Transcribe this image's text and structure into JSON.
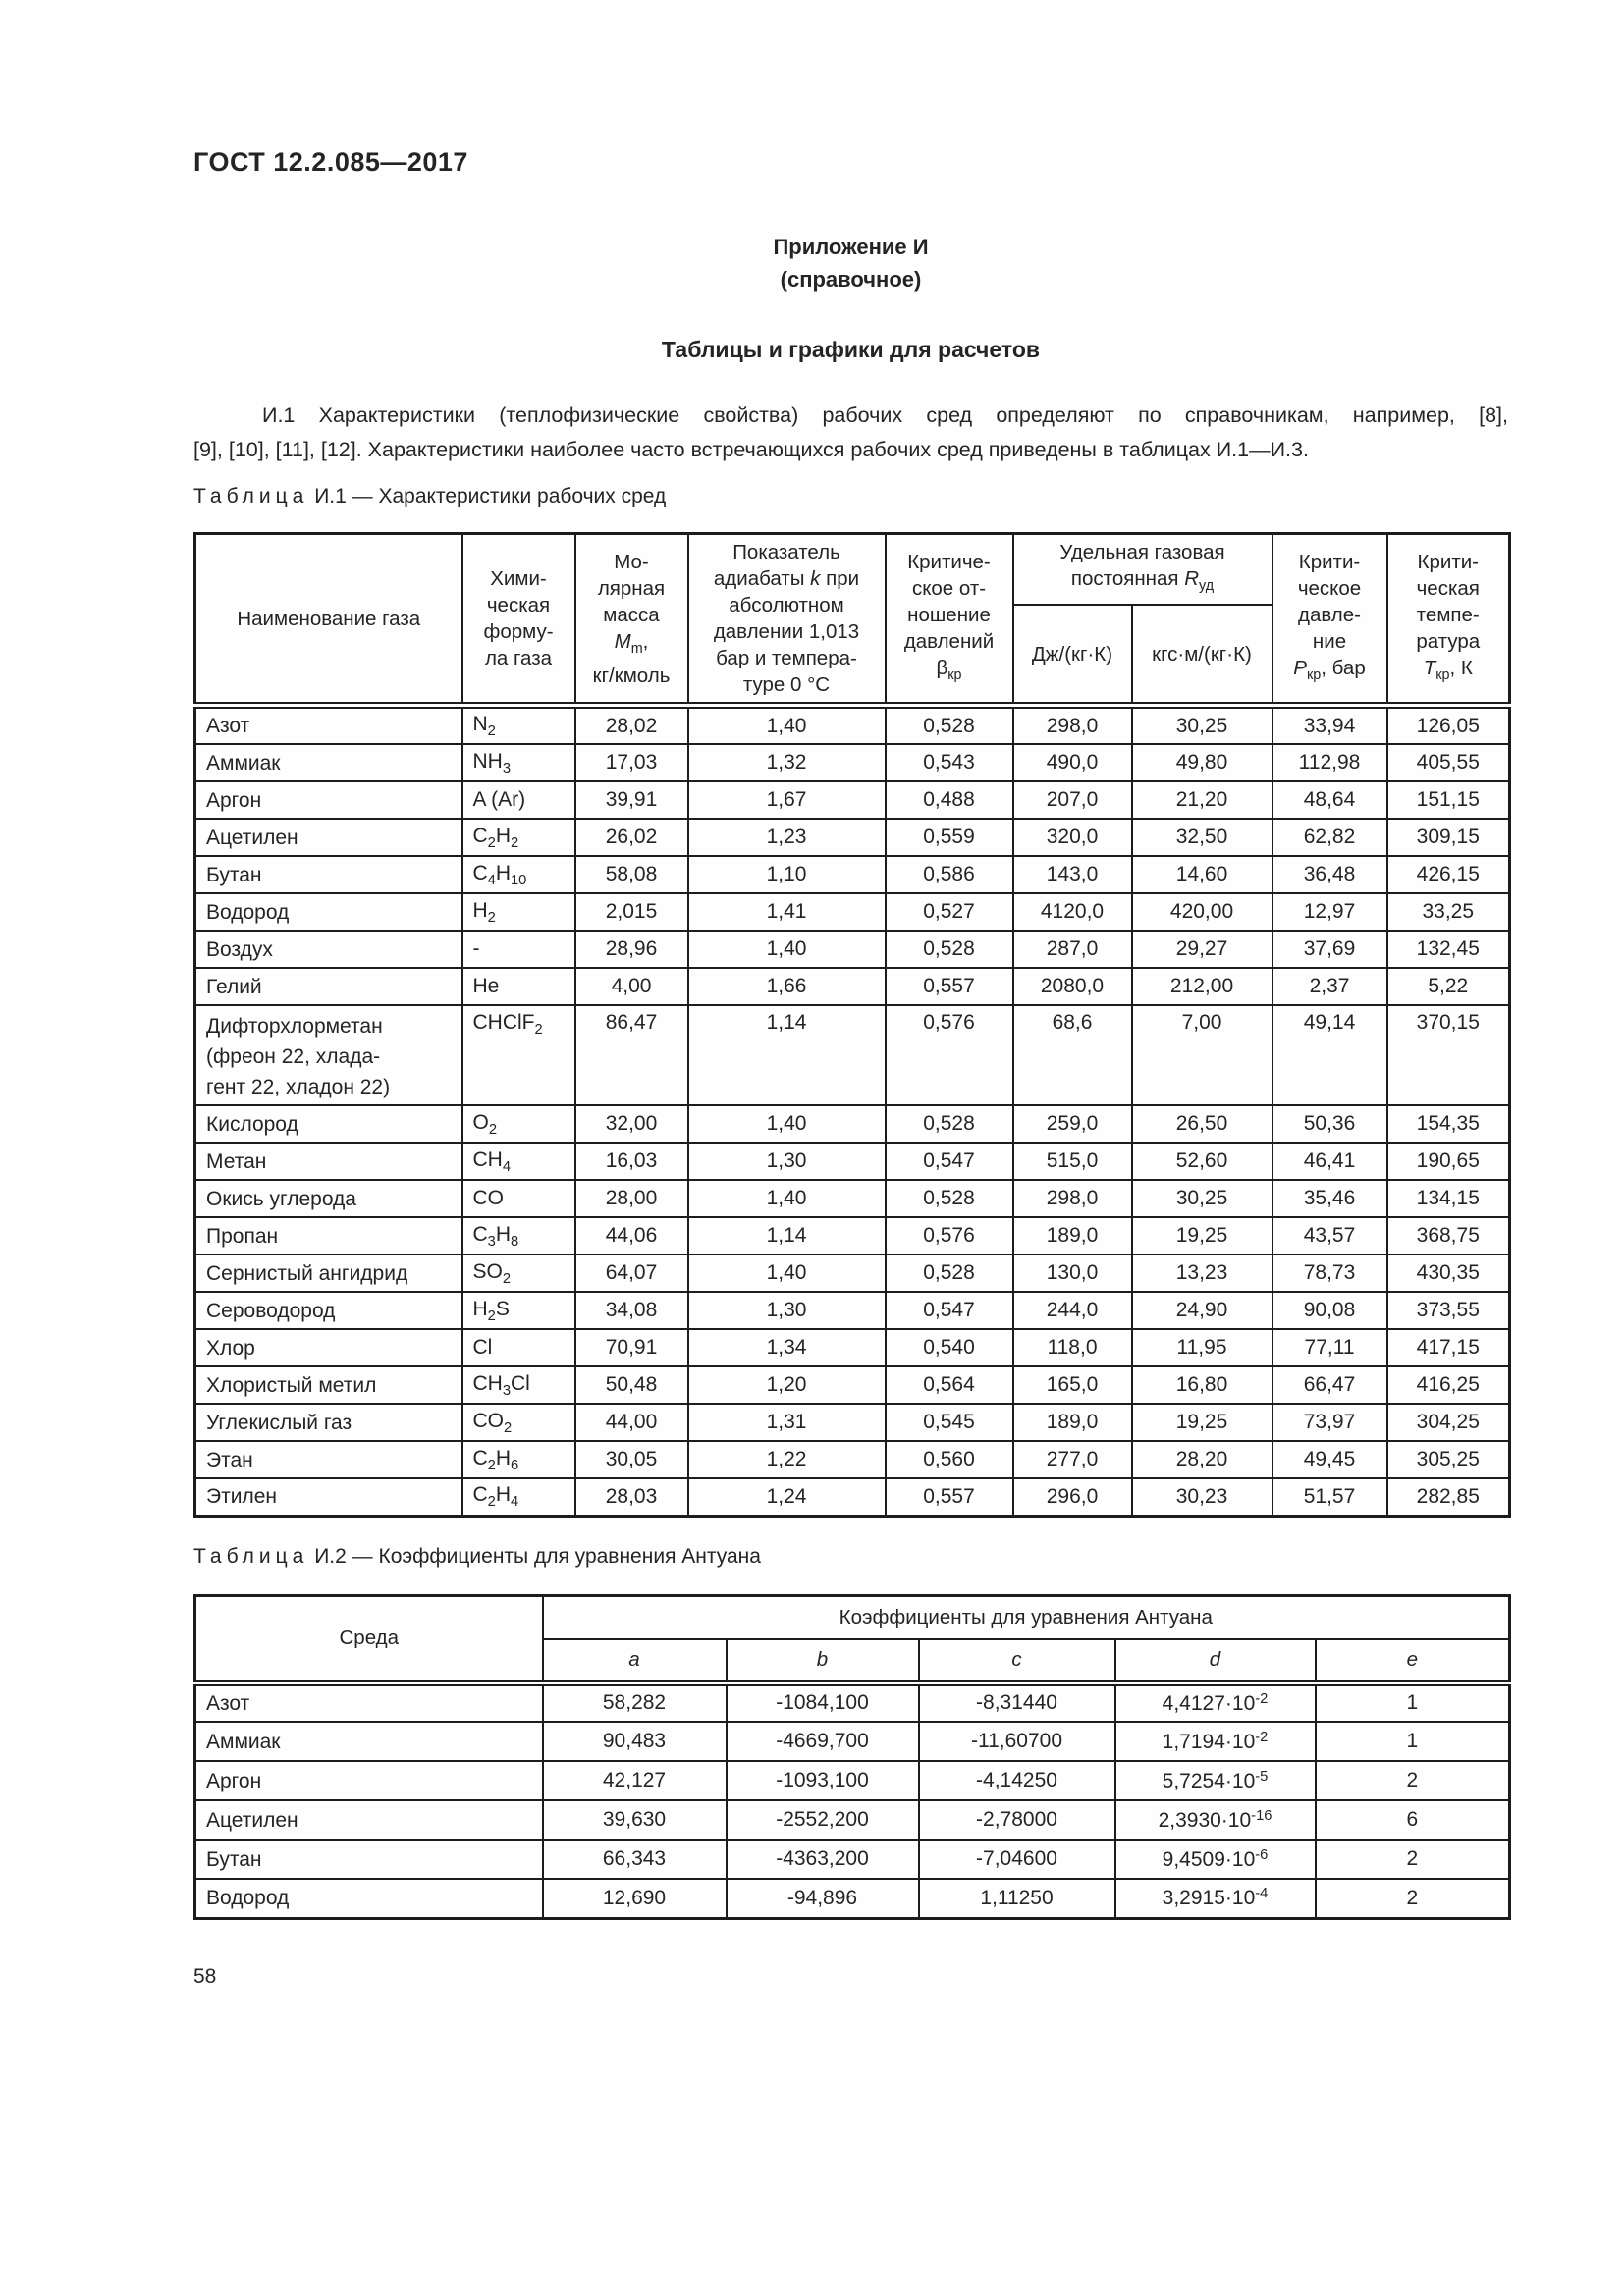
{
  "page": {
    "doc_code": "ГОСТ 12.2.085—2017",
    "appendix_title": "Приложение И",
    "appendix_note": "(справочное)",
    "section_title": "Таблицы и графики для расчетов",
    "paragraph_line1": "И.1 Характеристики (теплофизические свойства) рабочих сред определяют по справочникам, например, [8],",
    "paragraph_line2": "[9], [10], [11], [12]. Характеристики наиболее часто встречающихся рабочих сред приведены в таблицах И.1—И.3.",
    "page_number": "58"
  },
  "table1": {
    "caption_word": "Таблица",
    "caption_num": "И.1",
    "caption_rest": "— Характеристики рабочих сред",
    "headers": {
      "name": "Наименование газа",
      "formula": "Хими-\nческая\nформу-\nла газа",
      "molar_mass": "Мо-\nлярная\nмасса\n*M*_{m},\nкг/кмоль",
      "adiabatic": "Показатель\nадиабаты *k* при\nабсолютном\nдавлении  1,013\nбар и темпера-\nтуре 0 °С",
      "critical_ratio": "Критиче-\nское от-\nношение\nдавлений\nβ_{кр}",
      "gas_constant_group": "Удельная газовая\nпостоянная *R*_{уд}",
      "gas_constant_j": "Дж/(кг·К)",
      "gas_constant_kgs": "кгс·м/(кг·К)",
      "critical_pressure": "Крити-\nческое\nдавле-\nние\n*P*_{кр}, бар",
      "critical_temperature": "Крити-\nческая\nтемпе-\nратура\n*T*_{кр},  К"
    },
    "rows": [
      {
        "name": "Азот",
        "formula": "N_{2}",
        "m": "28,02",
        "k": "1,40",
        "beta": "0,528",
        "r_j": "298,0",
        "r_kgs": "30,25",
        "p": "33,94",
        "t": "126,05"
      },
      {
        "name": "Аммиак",
        "formula": "NH_{3}",
        "m": "17,03",
        "k": "1,32",
        "beta": "0,543",
        "r_j": "490,0",
        "r_kgs": "49,80",
        "p": "112,98",
        "t": "405,55"
      },
      {
        "name": "Аргон",
        "formula": "A (Ar)",
        "m": "39,91",
        "k": "1,67",
        "beta": "0,488",
        "r_j": "207,0",
        "r_kgs": "21,20",
        "p": "48,64",
        "t": "151,15"
      },
      {
        "name": "Ацетилен",
        "formula": "C_{2}H_{2}",
        "m": "26,02",
        "k": "1,23",
        "beta": "0,559",
        "r_j": "320,0",
        "r_kgs": "32,50",
        "p": "62,82",
        "t": "309,15"
      },
      {
        "name": "Бутан",
        "formula": "C_{4}H_{10}",
        "m": "58,08",
        "k": "1,10",
        "beta": "0,586",
        "r_j": "143,0",
        "r_kgs": "14,60",
        "p": "36,48",
        "t": "426,15"
      },
      {
        "name": "Водород",
        "formula": "H_{2}",
        "m": "2,015",
        "k": "1,41",
        "beta": "0,527",
        "r_j": "4120,0",
        "r_kgs": "420,00",
        "p": "12,97",
        "t": "33,25"
      },
      {
        "name": "Воздух",
        "formula": "-",
        "m": "28,96",
        "k": "1,40",
        "beta": "0,528",
        "r_j": "287,0",
        "r_kgs": "29,27",
        "p": "37,69",
        "t": "132,45"
      },
      {
        "name": "Гелий",
        "formula": "He",
        "m": "4,00",
        "k": "1,66",
        "beta": "0,557",
        "r_j": "2080,0",
        "r_kgs": "212,00",
        "p": "2,37",
        "t": "5,22"
      },
      {
        "name": "Дифторхлорметан\n(фреон  22,  хлада-\nгент 22, хладон 22)",
        "formula": "CHClF_{2}",
        "m": "86,47",
        "k": "1,14",
        "beta": "0,576",
        "r_j": "68,6",
        "r_kgs": "7,00",
        "p": "49,14",
        "t": "370,15"
      },
      {
        "name": "Кислород",
        "formula": "O_{2}",
        "m": "32,00",
        "k": "1,40",
        "beta": "0,528",
        "r_j": "259,0",
        "r_kgs": "26,50",
        "p": "50,36",
        "t": "154,35"
      },
      {
        "name": "Метан",
        "formula": "CH_{4}",
        "m": "16,03",
        "k": "1,30",
        "beta": "0,547",
        "r_j": "515,0",
        "r_kgs": "52,60",
        "p": "46,41",
        "t": "190,65"
      },
      {
        "name": "Окись углерода",
        "formula": "CO",
        "m": "28,00",
        "k": "1,40",
        "beta": "0,528",
        "r_j": "298,0",
        "r_kgs": "30,25",
        "p": "35,46",
        "t": "134,15"
      },
      {
        "name": "Пропан",
        "formula": "C_{3}H_{8}",
        "m": "44,06",
        "k": "1,14",
        "beta": "0,576",
        "r_j": "189,0",
        "r_kgs": "19,25",
        "p": "43,57",
        "t": "368,75"
      },
      {
        "name": "Сернистый ангидрид",
        "formula": "SO_{2}",
        "m": "64,07",
        "k": "1,40",
        "beta": "0,528",
        "r_j": "130,0",
        "r_kgs": "13,23",
        "p": "78,73",
        "t": "430,35"
      },
      {
        "name": "Сероводород",
        "formula": "H_{2}S",
        "m": "34,08",
        "k": "1,30",
        "beta": "0,547",
        "r_j": "244,0",
        "r_kgs": "24,90",
        "p": "90,08",
        "t": "373,55"
      },
      {
        "name": "Хлор",
        "formula": "Cl",
        "m": "70,91",
        "k": "1,34",
        "beta": "0,540",
        "r_j": "118,0",
        "r_kgs": "11,95",
        "p": "77,11",
        "t": "417,15"
      },
      {
        "name": "Хлористый метил",
        "formula": "CH_{3}Cl",
        "m": "50,48",
        "k": "1,20",
        "beta": "0,564",
        "r_j": "165,0",
        "r_kgs": "16,80",
        "p": "66,47",
        "t": "416,25"
      },
      {
        "name": "Углекислый газ",
        "formula": "CO_{2}",
        "m": "44,00",
        "k": "1,31",
        "beta": "0,545",
        "r_j": "189,0",
        "r_kgs": "19,25",
        "p": "73,97",
        "t": "304,25"
      },
      {
        "name": "Этан",
        "formula": "C_{2}H_{6}",
        "m": "30,05",
        "k": "1,22",
        "beta": "0,560",
        "r_j": "277,0",
        "r_kgs": "28,20",
        "p": "49,45",
        "t": "305,25"
      },
      {
        "name": "Этилен",
        "formula": "C_{2}H_{4}",
        "m": "28,03",
        "k": "1,24",
        "beta": "0,557",
        "r_j": "296,0",
        "r_kgs": "30,23",
        "p": "51,57",
        "t": "282,85"
      }
    ]
  },
  "table2": {
    "caption_word": "Таблица",
    "caption_num": "И.2",
    "caption_rest": "— Коэффициенты для уравнения Антуана",
    "headers": {
      "medium": "Среда",
      "group": "Коэффициенты для уравнения Антуана",
      "a": "a",
      "b": "b",
      "c": "c",
      "d": "d",
      "e": "e"
    },
    "rows": [
      {
        "name": "Азот",
        "a": "58,282",
        "b": "-1084,100",
        "c": "-8,31440",
        "d": "4,4127·10^{-2}",
        "e": "1"
      },
      {
        "name": "Аммиак",
        "a": "90,483",
        "b": "-4669,700",
        "c": "-11,60700",
        "d": "1,7194·10^{-2}",
        "e": "1"
      },
      {
        "name": "Аргон",
        "a": "42,127",
        "b": "-1093,100",
        "c": "-4,14250",
        "d": "5,7254·10^{-5}",
        "e": "2"
      },
      {
        "name": "Ацетилен",
        "a": "39,630",
        "b": "-2552,200",
        "c": "-2,78000",
        "d": "2,3930·10^{-16}",
        "e": "6"
      },
      {
        "name": "Бутан",
        "a": "66,343",
        "b": "-4363,200",
        "c": "-7,04600",
        "d": "9,4509·10^{-6}",
        "e": "2"
      },
      {
        "name": "Водород",
        "a": "12,690",
        "b": "-94,896",
        "c": "1,11250",
        "d": "3,2915·10^{-4}",
        "e": "2"
      }
    ]
  }
}
